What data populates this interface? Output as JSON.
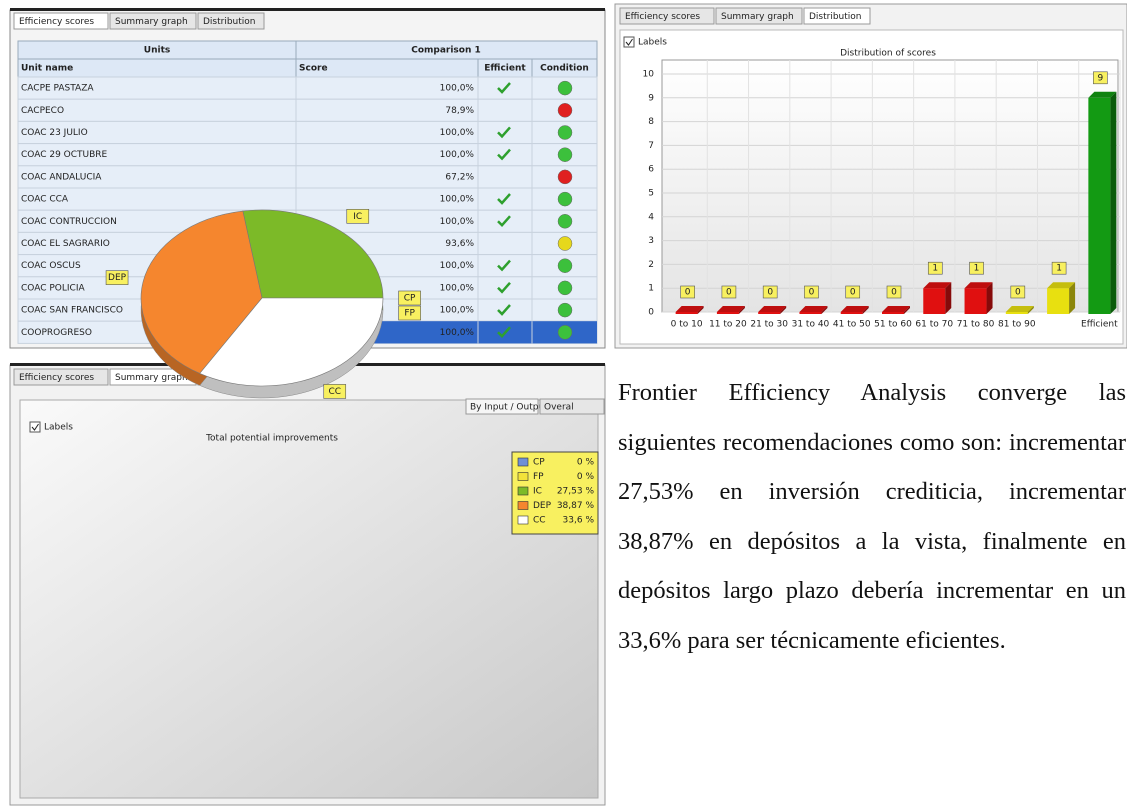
{
  "tabs": [
    "Efficiency scores",
    "Summary graph",
    "Distribution"
  ],
  "table": {
    "group_headers": [
      "Units",
      "Comparison 1"
    ],
    "columns": [
      "Unit name",
      "Score",
      "Efficient",
      "Condition"
    ],
    "selected_row": 11,
    "rows": [
      {
        "name": "CACPE PASTAZA",
        "score": "100,0%",
        "efficient": true,
        "condition": "green"
      },
      {
        "name": "CACPECO",
        "score": "78,9%",
        "efficient": false,
        "condition": "red"
      },
      {
        "name": "COAC 23 JULIO",
        "score": "100,0%",
        "efficient": true,
        "condition": "green"
      },
      {
        "name": "COAC 29 OCTUBRE",
        "score": "100,0%",
        "efficient": true,
        "condition": "green"
      },
      {
        "name": "COAC ANDALUCIA",
        "score": "67,2%",
        "efficient": false,
        "condition": "red"
      },
      {
        "name": "COAC CCA",
        "score": "100,0%",
        "efficient": true,
        "condition": "green"
      },
      {
        "name": "COAC CONTRUCCION",
        "score": "100,0%",
        "efficient": true,
        "condition": "green"
      },
      {
        "name": "COAC EL SAGRARIO",
        "score": "93,6%",
        "efficient": false,
        "condition": "yellow"
      },
      {
        "name": "COAC OSCUS",
        "score": "100,0%",
        "efficient": true,
        "condition": "green"
      },
      {
        "name": "COAC POLICIA",
        "score": "100,0%",
        "efficient": true,
        "condition": "green"
      },
      {
        "name": "COAC SAN FRANCISCO",
        "score": "100,0%",
        "efficient": true,
        "condition": "green"
      },
      {
        "name": "COOPROGRESO",
        "score": "100,0%",
        "efficient": true,
        "condition": "green"
      }
    ]
  },
  "checkbox_label": "Labels",
  "sub_tabs": [
    "By Input / Output",
    "Overal"
  ],
  "chart_data": [
    {
      "type": "bar",
      "title": "Distribution of scores",
      "categories": [
        "0 to 10",
        "11 to 20",
        "21 to 30",
        "31 to 40",
        "41 to 50",
        "51 to 60",
        "61 to 70",
        "71 to 80",
        "81 to 90",
        null,
        "Efficient"
      ],
      "values": [
        0,
        0,
        0,
        0,
        0,
        0,
        1,
        1,
        0,
        1,
        9
      ],
      "colors": [
        "#e01010",
        "#e01010",
        "#e01010",
        "#e01010",
        "#e01010",
        "#e01010",
        "#e01010",
        "#e01010",
        "#e8e010",
        "#e8e010",
        "#139a13"
      ],
      "ylim": [
        0,
        10
      ],
      "yticks": [
        0,
        1,
        2,
        3,
        4,
        5,
        6,
        7,
        8,
        9,
        10
      ],
      "grid": true
    },
    {
      "type": "pie",
      "title": "Total potential improvements",
      "categories": [
        "CP",
        "FP",
        "IC",
        "DEP",
        "CC"
      ],
      "values": [
        0,
        0,
        27.53,
        38.87,
        33.6
      ],
      "value_labels": [
        "0 %",
        "0 %",
        "27,53 %",
        "38,87 %",
        "33,6 %"
      ],
      "colors": [
        "#6f8fd6",
        "#f2e23a",
        "#7cba28",
        "#f5862e",
        "#ffffff"
      ],
      "legend": "top-right"
    }
  ],
  "paragraph": "Frontier Efficiency Analysis converge las siguientes recomendaciones como son: incrementar 27,53% en inversión crediticia, incrementar 38,87% en depósitos a la vista, finalmente en depósitos largo plazo debería incrementar en un 33,6% para ser técnicamente eficientes."
}
